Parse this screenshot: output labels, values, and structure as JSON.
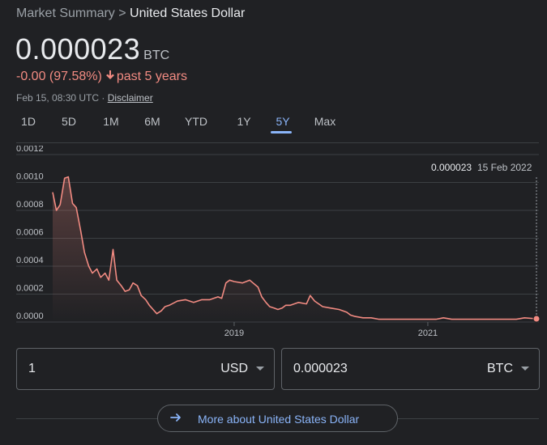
{
  "breadcrumb": {
    "parent": "Market Summary",
    "separator": ">",
    "current": "United States Dollar"
  },
  "quote": {
    "price": "0.000023",
    "unit": "BTC",
    "change": "-0.00 (97.58%)",
    "period": "past 5 years",
    "timestamp": "Feb 15, 08:30 UTC · ",
    "disclaimer": "Disclaimer"
  },
  "ranges": [
    "1D",
    "5D",
    "1M",
    "6M",
    "YTD",
    "1Y",
    "5Y",
    "Max"
  ],
  "active_range": "5Y",
  "colors": {
    "line": "#f28b82",
    "accent": "#8ab4f8",
    "grid": "#3c4043",
    "background": "#202124"
  },
  "converter": {
    "from": {
      "value": "1",
      "currency": "USD"
    },
    "to": {
      "value": "0.000023",
      "currency": "BTC"
    }
  },
  "more_button": {
    "label": "More about United States Dollar"
  },
  "chart_data": {
    "type": "area",
    "title": "",
    "xlabel": "",
    "ylabel": "",
    "ylim": [
      0,
      0.0012
    ],
    "y_ticks": [
      "0.0000",
      "0.0002",
      "0.0004",
      "0.0006",
      "0.0008",
      "0.0010",
      "0.0012"
    ],
    "x_ticks": [
      "2019",
      "2021"
    ],
    "grid": true,
    "tooltip": {
      "value": "0.000023",
      "date": "15 Feb 2022"
    },
    "series": [
      {
        "x": [
          "2017-02-15",
          "2017-03-01",
          "2017-03-15",
          "2017-04-01",
          "2017-04-15",
          "2017-05-01",
          "2017-05-15",
          "2017-06-01",
          "2017-06-15",
          "2017-07-01",
          "2017-07-15",
          "2017-08-01",
          "2017-08-15",
          "2017-09-01",
          "2017-09-15",
          "2017-10-01",
          "2017-10-15",
          "2017-11-01",
          "2017-11-15",
          "2017-12-01",
          "2017-12-15",
          "2018-01-01",
          "2018-01-15",
          "2018-02-01",
          "2018-02-15",
          "2018-03-01",
          "2018-03-15",
          "2018-04-01",
          "2018-04-15",
          "2018-05-01",
          "2018-06-01",
          "2018-07-01",
          "2018-08-01",
          "2018-09-01",
          "2018-10-01",
          "2018-11-01",
          "2018-11-15",
          "2018-12-01",
          "2018-12-15",
          "2019-01-01",
          "2019-02-01",
          "2019-03-01",
          "2019-04-01",
          "2019-04-15",
          "2019-05-01",
          "2019-05-15",
          "2019-06-01",
          "2019-06-15",
          "2019-07-01",
          "2019-07-15",
          "2019-08-01",
          "2019-09-01",
          "2019-10-01",
          "2019-10-15",
          "2019-11-01",
          "2019-12-01",
          "2020-01-01",
          "2020-02-01",
          "2020-03-01",
          "2020-03-15",
          "2020-04-01",
          "2020-05-01",
          "2020-06-01",
          "2020-07-01",
          "2020-08-01",
          "2020-09-01",
          "2020-10-01",
          "2020-11-01",
          "2020-12-01",
          "2021-01-01",
          "2021-02-01",
          "2021-03-01",
          "2021-04-01",
          "2021-05-01",
          "2021-06-01",
          "2021-07-01",
          "2021-08-01",
          "2021-09-01",
          "2021-10-01",
          "2021-11-01",
          "2021-12-01",
          "2022-01-01",
          "2022-02-15"
        ],
        "y": [
          0.00093,
          0.0008,
          0.00084,
          0.00103,
          0.00104,
          0.00085,
          0.00082,
          0.00065,
          0.0005,
          0.0004,
          0.00035,
          0.00038,
          0.00032,
          0.00035,
          0.0003,
          0.00052,
          0.0003,
          0.00026,
          0.00022,
          0.00023,
          0.00028,
          0.00026,
          0.00019,
          0.00016,
          0.00012,
          9e-05,
          6e-05,
          8e-05,
          0.00011,
          0.00012,
          0.00015,
          0.00016,
          0.00014,
          0.00016,
          0.00016,
          0.00018,
          0.00017,
          0.00028,
          0.0003,
          0.00029,
          0.00028,
          0.0003,
          0.00025,
          0.00018,
          0.00014,
          0.00011,
          0.0001,
          9e-05,
          0.0001,
          0.00012,
          0.00012,
          0.00014,
          0.00013,
          0.00019,
          0.00015,
          0.00011,
          0.0001,
          9e-05,
          7e-05,
          5e-05,
          4e-05,
          3e-05,
          3e-05,
          2e-05,
          2e-05,
          2e-05,
          2e-05,
          2e-05,
          2e-05,
          2e-05,
          2e-05,
          3e-05,
          2e-05,
          2e-05,
          2e-05,
          2e-05,
          2e-05,
          2e-05,
          2e-05,
          2e-05,
          2e-05,
          3e-05,
          2.3e-05
        ]
      }
    ]
  }
}
